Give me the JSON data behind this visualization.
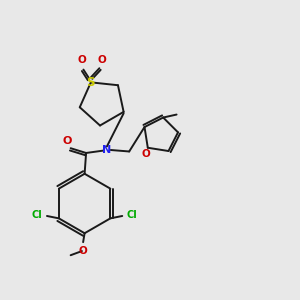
{
  "bg_color": "#e8e8e8",
  "bond_color": "#1a1a1a",
  "nitrogen_color": "#2020ee",
  "oxygen_color": "#cc0000",
  "sulfur_color": "#cccc00",
  "chlorine_color": "#00aa00",
  "line_width": 1.4,
  "figsize": [
    3.0,
    3.0
  ],
  "dpi": 100,
  "xlim": [
    0,
    10
  ],
  "ylim": [
    0,
    10
  ]
}
